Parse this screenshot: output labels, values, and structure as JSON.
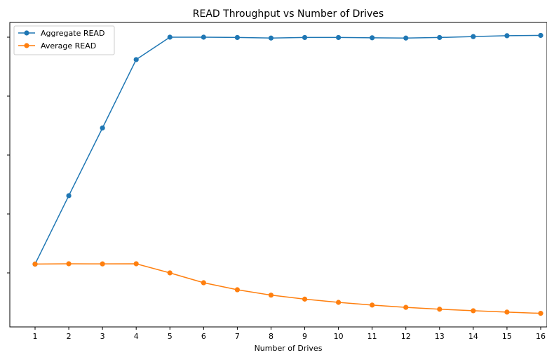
{
  "chart_data": {
    "type": "line",
    "title": "READ Throughput vs Number of Drives",
    "xlabel": "Number of Drives",
    "ylabel": "",
    "x": [
      1,
      2,
      3,
      4,
      5,
      6,
      7,
      8,
      9,
      10,
      11,
      12,
      13,
      14,
      15,
      16
    ],
    "x_ticks": [
      "1",
      "2",
      "3",
      "4",
      "5",
      "6",
      "7",
      "8",
      "9",
      "10",
      "11",
      "12",
      "13",
      "14",
      "15",
      "16"
    ],
    "ylim": [
      0,
      500
    ],
    "xlim": [
      0.3,
      16.05
    ],
    "y_ticks": [
      100,
      200,
      300,
      400,
      500
    ],
    "grid": false,
    "legend": "top-left",
    "series": [
      {
        "name": "Aggregate READ",
        "color": "#1f77b4",
        "marker": "circle",
        "values": [
          115.0,
          231.0,
          346.0,
          462.0,
          500.0,
          500.0,
          499.5,
          498.5,
          499.5,
          499.5,
          499.0,
          498.5,
          499.5,
          501.0,
          502.5,
          503.0
        ]
      },
      {
        "name": "Average READ",
        "color": "#ff7f0e",
        "marker": "circle",
        "values": [
          115.0,
          115.5,
          115.3,
          115.5,
          100.0,
          83.3,
          71.4,
          62.3,
          55.5,
          50.0,
          45.4,
          41.5,
          38.4,
          35.8,
          33.5,
          31.4
        ]
      }
    ]
  }
}
